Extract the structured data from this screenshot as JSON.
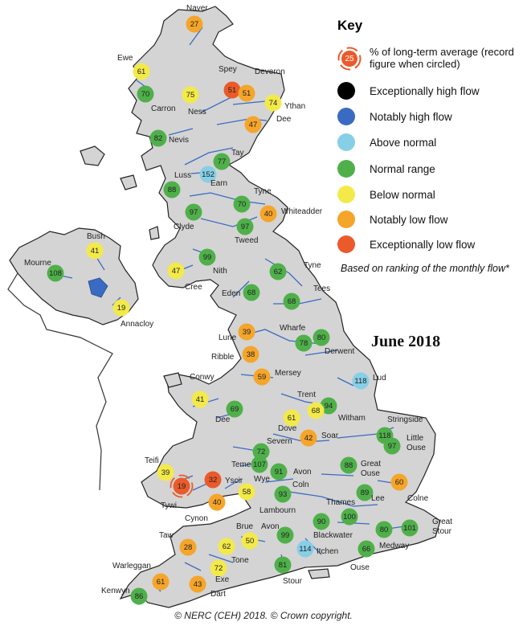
{
  "key": {
    "title": "Key",
    "pct_description": "% of long-term average (record figure when circled)",
    "pct_example": "25",
    "items": [
      {
        "label": "Exceptionally high flow",
        "color": "#000000"
      },
      {
        "label": "Notably high flow",
        "color": "#3a6bc2"
      },
      {
        "label": "Above normal",
        "color": "#86cfe6"
      },
      {
        "label": "Normal range",
        "color": "#4fb04a"
      },
      {
        "label": "Below normal",
        "color": "#f3ea4a"
      },
      {
        "label": "Notably low flow",
        "color": "#f5a52a"
      },
      {
        "label": "Exceptionally low flow",
        "color": "#ea5a2a"
      }
    ],
    "note": "Based on ranking of the monthly flow*"
  },
  "month": "June 2018",
  "credit": "© NERC (CEH) 2018. © Crown copyright.",
  "stations": [
    {
      "name": "Naver",
      "value": "27",
      "cls": "notably-low"
    },
    {
      "name": "Ewe",
      "value": "61",
      "cls": "below"
    },
    {
      "name": "",
      "value": "70",
      "cls": "normal"
    },
    {
      "name": "Carron",
      "value": "",
      "cls": ""
    },
    {
      "name": "Ness",
      "value": "75",
      "cls": "below"
    },
    {
      "name": "Spey",
      "value": "51",
      "cls": "exc-low"
    },
    {
      "name": "Deveron",
      "value": "51",
      "cls": "notably-low"
    },
    {
      "name": "Ythan",
      "value": "74",
      "cls": "below"
    },
    {
      "name": "Dee",
      "value": "47",
      "cls": "notably-low"
    },
    {
      "name": "Nevis",
      "value": "82",
      "cls": "normal"
    },
    {
      "name": "Tay",
      "value": "77",
      "cls": "normal"
    },
    {
      "name": "Earn",
      "value": "152",
      "cls": "above"
    },
    {
      "name": "Luss",
      "value": "88",
      "cls": "normal"
    },
    {
      "name": "Tyne",
      "value": "70",
      "cls": "normal"
    },
    {
      "name": "Whiteadder",
      "value": "40",
      "cls": "notably-low"
    },
    {
      "name": "Clyde",
      "value": "97",
      "cls": "normal"
    },
    {
      "name": "Tweed",
      "value": "97",
      "cls": "normal"
    },
    {
      "name": "Bush",
      "value": "41",
      "cls": "below"
    },
    {
      "name": "Mourne",
      "value": "108",
      "cls": "normal"
    },
    {
      "name": "Annacloy",
      "value": "19",
      "cls": "below"
    },
    {
      "name": "Nith",
      "value": "99",
      "cls": "normal"
    },
    {
      "name": "Cree",
      "value": "47",
      "cls": "below"
    },
    {
      "name": "Tyne",
      "value": "62",
      "cls": "normal"
    },
    {
      "name": "Eden",
      "value": "68",
      "cls": "normal"
    },
    {
      "name": "Tees",
      "value": "68",
      "cls": "normal"
    },
    {
      "name": "Lune",
      "value": "39",
      "cls": "notably-low"
    },
    {
      "name": "Wharfe",
      "value": "78",
      "cls": "normal"
    },
    {
      "name": "Derwent",
      "value": "80",
      "cls": "normal"
    },
    {
      "name": "Ribble",
      "value": "38",
      "cls": "notably-low"
    },
    {
      "name": "Mersey",
      "value": "59",
      "cls": "notably-low"
    },
    {
      "name": "Lud",
      "value": "118",
      "cls": "above"
    },
    {
      "name": "Conwy",
      "value": "41",
      "cls": "below"
    },
    {
      "name": "Dee",
      "value": "69",
      "cls": "normal"
    },
    {
      "name": "Trent",
      "value": "94",
      "cls": "normal"
    },
    {
      "name": "Witham",
      "value": "68",
      "cls": "below"
    },
    {
      "name": "Dove",
      "value": "61",
      "cls": "below"
    },
    {
      "name": "Soar",
      "value": "42",
      "cls": "notably-low"
    },
    {
      "name": "Stringside",
      "value": "118",
      "cls": "normal"
    },
    {
      "name": "Little Ouse",
      "value": "97",
      "cls": "normal"
    },
    {
      "name": "Severn",
      "value": "72",
      "cls": "normal"
    },
    {
      "name": "Teme",
      "value": "107",
      "cls": "normal"
    },
    {
      "name": "Avon",
      "value": "91",
      "cls": "normal"
    },
    {
      "name": "Great Ouse",
      "value": "88",
      "cls": "normal"
    },
    {
      "name": "Teifi",
      "value": "39",
      "cls": "below"
    },
    {
      "name": "Tywi",
      "value": "19",
      "cls": "exc-low-record"
    },
    {
      "name": "Yscir",
      "value": "32",
      "cls": "exc-low"
    },
    {
      "name": "Wye",
      "value": "58",
      "cls": "below"
    },
    {
      "name": "Colne",
      "value": "60",
      "cls": "notably-low"
    },
    {
      "name": "Cynon",
      "value": "40",
      "cls": "notably-low"
    },
    {
      "name": "Coln",
      "value": "93",
      "cls": "normal"
    },
    {
      "name": "Lee",
      "value": "89",
      "cls": "normal"
    },
    {
      "name": "Thames",
      "value": "100",
      "cls": "normal"
    },
    {
      "name": "Lambourn",
      "value": "",
      "cls": ""
    },
    {
      "name": "Blackwater",
      "value": "90",
      "cls": "normal"
    },
    {
      "name": "Medway",
      "value": "80",
      "cls": "normal"
    },
    {
      "name": "Great Stour",
      "value": "101",
      "cls": "normal"
    },
    {
      "name": "Taw",
      "value": "28",
      "cls": "notably-low"
    },
    {
      "name": "Brue",
      "value": "62",
      "cls": "below"
    },
    {
      "name": "Avon",
      "value": "50",
      "cls": "below"
    },
    {
      "name": "",
      "value": "99",
      "cls": "normal"
    },
    {
      "name": "Itchen",
      "value": "114",
      "cls": "above"
    },
    {
      "name": "Ouse",
      "value": "66",
      "cls": "normal"
    },
    {
      "name": "Tone",
      "value": "72",
      "cls": "below"
    },
    {
      "name": "Exe",
      "value": "",
      "cls": ""
    },
    {
      "name": "Stour",
      "value": "81",
      "cls": "normal"
    },
    {
      "name": "Warleggan",
      "value": "61",
      "cls": "notably-low"
    },
    {
      "name": "Dart",
      "value": "43",
      "cls": "notably-low"
    },
    {
      "name": "Kenwyn",
      "value": "86",
      "cls": "normal"
    }
  ]
}
